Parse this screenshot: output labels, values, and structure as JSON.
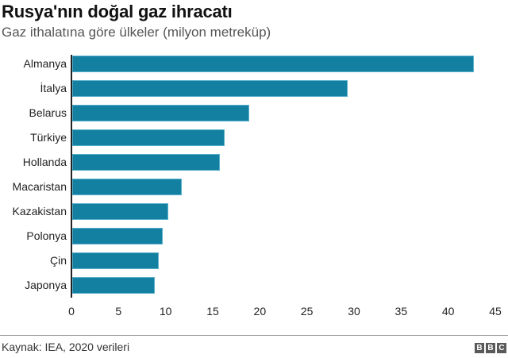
{
  "header": {
    "title": "Rusya'nın doğal gaz ihracatı",
    "subtitle": "Gaz ithalatına göre ülkeler (milyon metreküp)"
  },
  "footer": {
    "source": "Kaynak: IEA, 2020 verileri",
    "logo": [
      "B",
      "B",
      "C"
    ]
  },
  "colors": {
    "bar": "#1380a1",
    "axis": "#222222"
  },
  "chart_data": {
    "type": "bar",
    "orientation": "horizontal",
    "title": "Rusya'nın doğal gaz ihracatı",
    "subtitle": "Gaz ithalatına göre ülkeler (milyon metreküp)",
    "categories": [
      "Almanya",
      "İtalya",
      "Belarus",
      "Türkiye",
      "Hollanda",
      "Macaristan",
      "Kazakistan",
      "Polonya",
      "Çin",
      "Japonya"
    ],
    "values": [
      42.6,
      29.2,
      18.8,
      16.2,
      15.7,
      11.6,
      10.2,
      9.6,
      9.2,
      8.8
    ],
    "xlabel": "",
    "ylabel": "",
    "xlim": [
      0,
      45
    ],
    "xticks": [
      "0",
      "5",
      "10",
      "15",
      "20",
      "25",
      "30",
      "35",
      "40",
      "45"
    ],
    "grid": false,
    "legend": null,
    "source": "Kaynak: IEA, 2020 verileri"
  }
}
